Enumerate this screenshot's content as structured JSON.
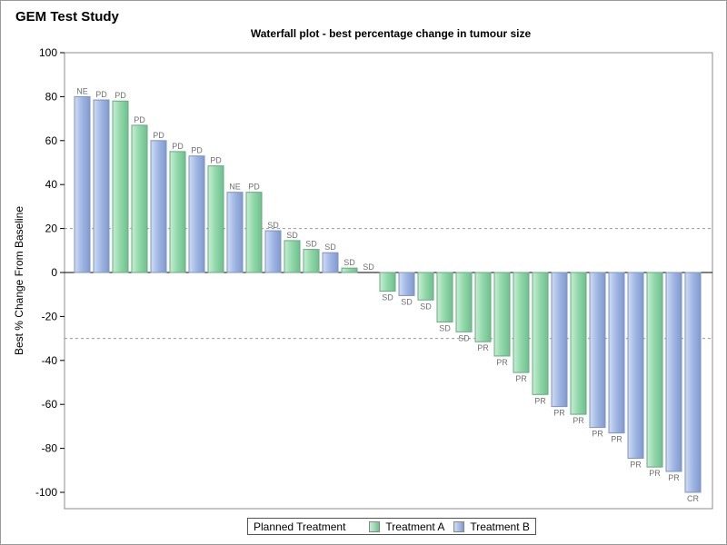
{
  "page": {
    "title": "GEM Test Study"
  },
  "chart_data": {
    "type": "bar",
    "title": "Waterfall plot - best percentage change in tumour size",
    "ylabel": "Best % Change From Baseline",
    "xlabel": "",
    "ylim": [
      -105,
      100
    ],
    "yticks": [
      100,
      80,
      60,
      40,
      20,
      0,
      -20,
      -40,
      -60,
      -80,
      -100
    ],
    "reference_lines": [
      20,
      -30
    ],
    "colors": {
      "Treatment A": "#9fdcb4",
      "Treatment B": "#a9bfe6"
    },
    "legend": {
      "title": "Planned Treatment",
      "entries": [
        "Treatment A",
        "Treatment B"
      ],
      "placement": "bottom"
    },
    "series": [
      {
        "label": "NE",
        "value": 80,
        "treatment": "Treatment B"
      },
      {
        "label": "PD",
        "value": 78.5,
        "treatment": "Treatment B"
      },
      {
        "label": "PD",
        "value": 78,
        "treatment": "Treatment A"
      },
      {
        "label": "PD",
        "value": 67,
        "treatment": "Treatment A"
      },
      {
        "label": "PD",
        "value": 60,
        "treatment": "Treatment B"
      },
      {
        "label": "PD",
        "value": 55,
        "treatment": "Treatment A"
      },
      {
        "label": "PD",
        "value": 53,
        "treatment": "Treatment B"
      },
      {
        "label": "PD",
        "value": 48.5,
        "treatment": "Treatment A"
      },
      {
        "label": "NE",
        "value": 36.5,
        "treatment": "Treatment B"
      },
      {
        "label": "PD",
        "value": 36.5,
        "treatment": "Treatment A"
      },
      {
        "label": "SD",
        "value": 19,
        "treatment": "Treatment B"
      },
      {
        "label": "SD",
        "value": 14.5,
        "treatment": "Treatment A"
      },
      {
        "label": "SD",
        "value": 10.5,
        "treatment": "Treatment A"
      },
      {
        "label": "SD",
        "value": 9,
        "treatment": "Treatment B"
      },
      {
        "label": "SD",
        "value": 2,
        "treatment": "Treatment A"
      },
      {
        "label": "SD",
        "value": 0,
        "treatment": "Treatment A"
      },
      {
        "label": "SD",
        "value": -8.5,
        "treatment": "Treatment A"
      },
      {
        "label": "SD",
        "value": -10.5,
        "treatment": "Treatment B"
      },
      {
        "label": "SD",
        "value": -12.5,
        "treatment": "Treatment A"
      },
      {
        "label": "SD",
        "value": -22.5,
        "treatment": "Treatment A"
      },
      {
        "label": "SD",
        "value": -27,
        "treatment": "Treatment A"
      },
      {
        "label": "PR",
        "value": -31.5,
        "treatment": "Treatment A"
      },
      {
        "label": "PR",
        "value": -38,
        "treatment": "Treatment A"
      },
      {
        "label": "PR",
        "value": -45.5,
        "treatment": "Treatment A"
      },
      {
        "label": "PR",
        "value": -55.5,
        "treatment": "Treatment A"
      },
      {
        "label": "PR",
        "value": -61,
        "treatment": "Treatment B"
      },
      {
        "label": "PR",
        "value": -64.5,
        "treatment": "Treatment A"
      },
      {
        "label": "PR",
        "value": -70.5,
        "treatment": "Treatment B"
      },
      {
        "label": "PR",
        "value": -73,
        "treatment": "Treatment B"
      },
      {
        "label": "PR",
        "value": -84.5,
        "treatment": "Treatment B"
      },
      {
        "label": "PR",
        "value": -88.5,
        "treatment": "Treatment A"
      },
      {
        "label": "PR",
        "value": -90.5,
        "treatment": "Treatment B"
      },
      {
        "label": "CR",
        "value": -100,
        "treatment": "Treatment B"
      }
    ]
  }
}
